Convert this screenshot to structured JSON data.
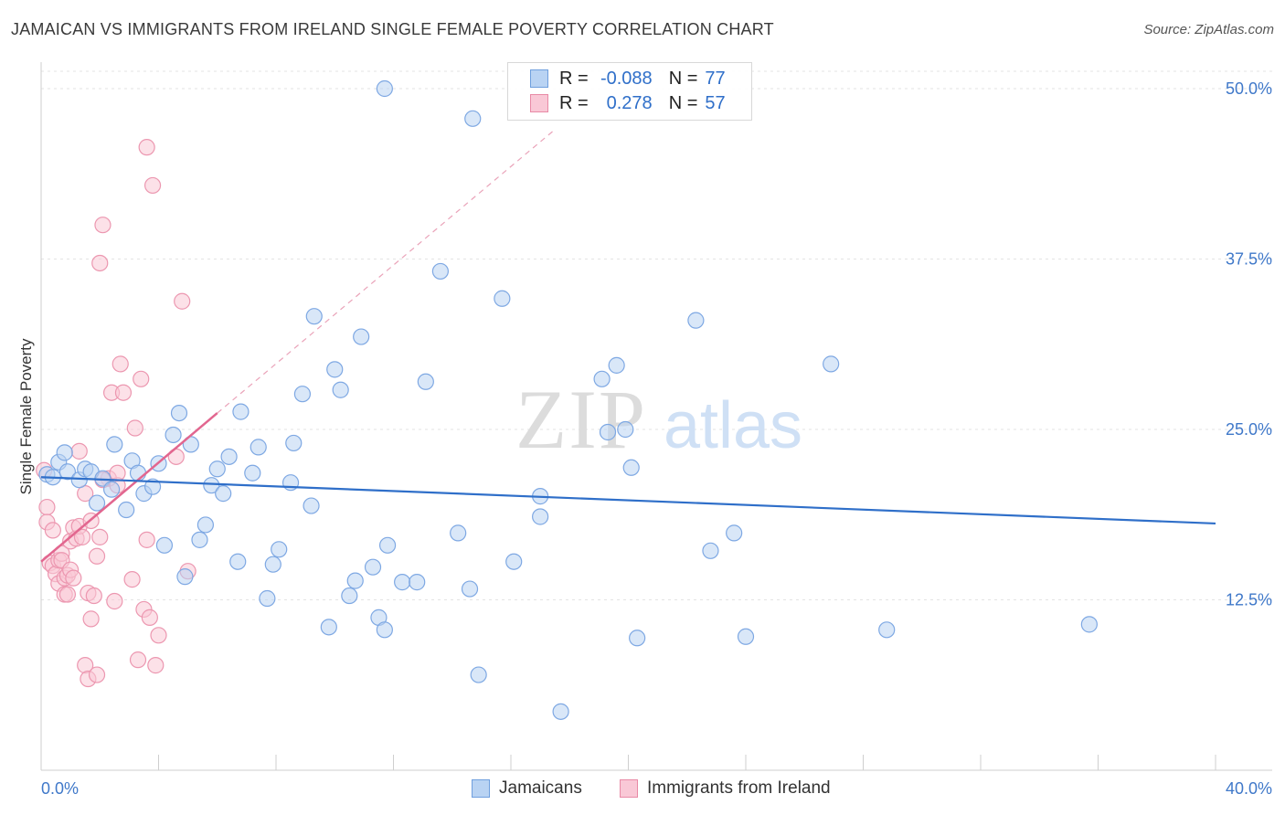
{
  "title": "JAMAICAN VS IMMIGRANTS FROM IRELAND SINGLE FEMALE POVERTY CORRELATION CHART",
  "source": "Source: ZipAtlas.com",
  "watermark": {
    "zip": "ZIP",
    "atlas": "atlas"
  },
  "colors": {
    "blue_fill": "#b9d3f3",
    "blue_stroke": "#7ea8e3",
    "blue_line": "#2f6fc9",
    "pink_fill": "#f9c8d6",
    "pink_stroke": "#ec97b0",
    "pink_line": "#e2668f",
    "grid": "#e3e3e3",
    "tick_label": "#3f78c9"
  },
  "legend": {
    "r_label": "R =",
    "n_label": "N =",
    "rows": [
      {
        "series": "Jamaicans",
        "r": "-0.088",
        "n": "77"
      },
      {
        "series": "Immigrants from Ireland",
        "r": "0.278",
        "n": "57"
      }
    ]
  },
  "chart_data": {
    "type": "scatter",
    "title": "JAMAICAN VS IMMIGRANTS FROM IRELAND SINGLE FEMALE POVERTY CORRELATION CHART",
    "xlabel": "",
    "ylabel": "Single Female Poverty",
    "xlim": [
      0,
      40
    ],
    "ylim": [
      0,
      50
    ],
    "x_tick_labels": [
      "0.0%",
      "40.0%"
    ],
    "y_ticks": [
      12.5,
      25.0,
      37.5,
      50.0
    ],
    "y_tick_labels": [
      "12.5%",
      "25.0%",
      "37.5%",
      "50.0%"
    ],
    "grid": true,
    "series": [
      {
        "name": "Jamaicans",
        "color": "#b9d3f3",
        "trend": {
          "x": [
            0,
            40
          ],
          "y": [
            21.5,
            18.1
          ],
          "style": "solid"
        },
        "points": [
          [
            0.2,
            21.7
          ],
          [
            0.4,
            21.5
          ],
          [
            0.6,
            22.6
          ],
          [
            0.8,
            23.3
          ],
          [
            0.9,
            21.9
          ],
          [
            1.3,
            21.3
          ],
          [
            1.5,
            22.1
          ],
          [
            1.7,
            21.9
          ],
          [
            1.9,
            19.6
          ],
          [
            2.1,
            21.4
          ],
          [
            2.4,
            20.6
          ],
          [
            2.5,
            23.9
          ],
          [
            2.9,
            19.1
          ],
          [
            3.1,
            22.7
          ],
          [
            3.3,
            21.8
          ],
          [
            3.5,
            20.3
          ],
          [
            3.8,
            20.8
          ],
          [
            4.0,
            22.5
          ],
          [
            4.2,
            16.5
          ],
          [
            4.5,
            24.6
          ],
          [
            4.7,
            26.2
          ],
          [
            4.9,
            14.2
          ],
          [
            5.1,
            23.9
          ],
          [
            5.4,
            16.9
          ],
          [
            5.6,
            18.0
          ],
          [
            5.8,
            20.9
          ],
          [
            6.0,
            22.1
          ],
          [
            6.2,
            20.3
          ],
          [
            6.4,
            23.0
          ],
          [
            6.7,
            15.3
          ],
          [
            6.8,
            26.3
          ],
          [
            7.2,
            21.8
          ],
          [
            7.4,
            23.7
          ],
          [
            7.7,
            12.6
          ],
          [
            7.9,
            15.1
          ],
          [
            8.1,
            16.2
          ],
          [
            8.5,
            21.1
          ],
          [
            8.6,
            24.0
          ],
          [
            8.9,
            27.6
          ],
          [
            9.2,
            19.4
          ],
          [
            9.3,
            33.3
          ],
          [
            9.8,
            10.5
          ],
          [
            10.0,
            29.4
          ],
          [
            10.2,
            27.9
          ],
          [
            10.5,
            12.8
          ],
          [
            10.7,
            13.9
          ],
          [
            10.9,
            31.8
          ],
          [
            11.3,
            14.9
          ],
          [
            11.5,
            11.2
          ],
          [
            11.7,
            10.3
          ],
          [
            11.8,
            16.5
          ],
          [
            12.3,
            13.8
          ],
          [
            11.7,
            50.0
          ],
          [
            12.8,
            13.8
          ],
          [
            13.1,
            28.5
          ],
          [
            13.6,
            36.6
          ],
          [
            14.2,
            17.4
          ],
          [
            14.6,
            13.3
          ],
          [
            14.7,
            47.8
          ],
          [
            14.9,
            7.0
          ],
          [
            15.7,
            34.6
          ],
          [
            16.1,
            15.3
          ],
          [
            17.0,
            18.6
          ],
          [
            17.0,
            20.1
          ],
          [
            17.7,
            4.3
          ],
          [
            19.1,
            28.7
          ],
          [
            19.3,
            24.8
          ],
          [
            19.6,
            29.7
          ],
          [
            19.9,
            25.0
          ],
          [
            20.1,
            22.2
          ],
          [
            20.3,
            9.7
          ],
          [
            22.3,
            33.0
          ],
          [
            22.8,
            16.1
          ],
          [
            23.6,
            17.4
          ],
          [
            24.0,
            9.8
          ],
          [
            26.9,
            29.8
          ],
          [
            28.8,
            10.3
          ],
          [
            35.7,
            10.7
          ]
        ]
      },
      {
        "name": "Immigrants from Ireland",
        "color": "#f9c8d6",
        "trend": {
          "x": [
            0,
            6.0
          ],
          "y": [
            15.3,
            26.2
          ],
          "style": "solid",
          "extended_to": [
            17.5,
            47.0
          ],
          "extended_style": "dashed"
        },
        "points": [
          [
            0.1,
            22.0
          ],
          [
            0.2,
            19.3
          ],
          [
            0.2,
            18.2
          ],
          [
            0.3,
            15.2
          ],
          [
            0.4,
            17.6
          ],
          [
            0.4,
            15.0
          ],
          [
            0.5,
            14.4
          ],
          [
            0.6,
            13.7
          ],
          [
            0.6,
            15.4
          ],
          [
            0.7,
            15.9
          ],
          [
            0.7,
            15.4
          ],
          [
            0.8,
            12.9
          ],
          [
            0.8,
            14.1
          ],
          [
            0.9,
            12.9
          ],
          [
            0.9,
            14.3
          ],
          [
            1.0,
            14.7
          ],
          [
            1.0,
            16.8
          ],
          [
            1.1,
            17.8
          ],
          [
            1.1,
            14.1
          ],
          [
            1.2,
            17.0
          ],
          [
            1.3,
            23.4
          ],
          [
            1.3,
            17.9
          ],
          [
            1.4,
            17.1
          ],
          [
            1.5,
            20.3
          ],
          [
            1.5,
            7.7
          ],
          [
            1.6,
            13.0
          ],
          [
            1.6,
            6.7
          ],
          [
            1.7,
            18.3
          ],
          [
            1.7,
            11.1
          ],
          [
            1.8,
            12.8
          ],
          [
            1.9,
            15.7
          ],
          [
            1.9,
            7.0
          ],
          [
            2.0,
            17.1
          ],
          [
            2.1,
            40.0
          ],
          [
            2.3,
            21.4
          ],
          [
            2.4,
            27.7
          ],
          [
            2.5,
            12.4
          ],
          [
            2.6,
            20.9
          ],
          [
            2.7,
            29.8
          ],
          [
            2.8,
            27.7
          ],
          [
            3.1,
            14.0
          ],
          [
            3.2,
            25.1
          ],
          [
            3.3,
            8.1
          ],
          [
            3.4,
            28.7
          ],
          [
            3.5,
            11.8
          ],
          [
            3.6,
            16.9
          ],
          [
            3.6,
            45.7
          ],
          [
            3.7,
            11.2
          ],
          [
            3.8,
            42.9
          ],
          [
            3.9,
            7.7
          ],
          [
            4.0,
            9.9
          ],
          [
            2.0,
            37.2
          ],
          [
            4.6,
            23.0
          ],
          [
            4.8,
            34.4
          ],
          [
            5.0,
            14.6
          ],
          [
            2.6,
            21.8
          ],
          [
            2.1,
            21.3
          ]
        ]
      }
    ]
  }
}
